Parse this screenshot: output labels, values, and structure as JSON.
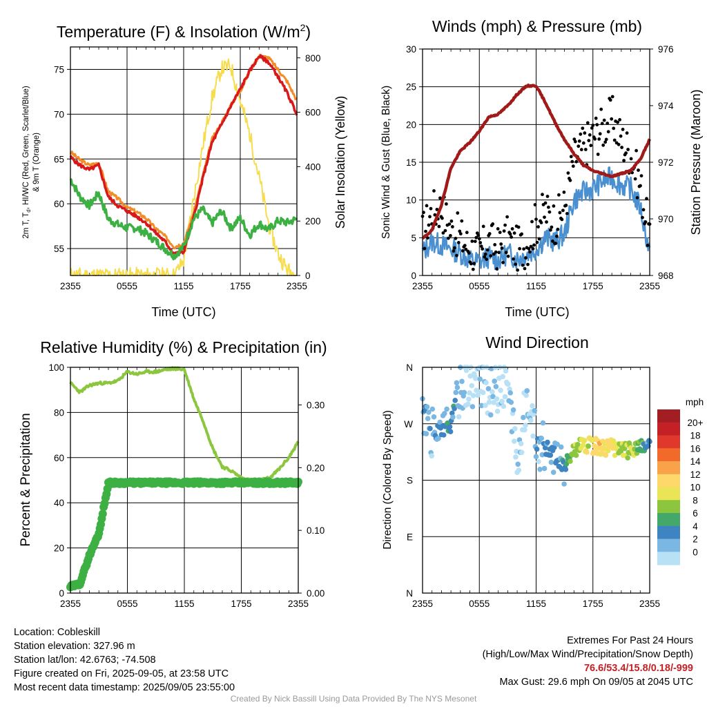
{
  "theme": {
    "temp_color": "#d7191c",
    "hiwc_color": "#3cb043",
    "t9m_color": "#f28c28",
    "solar_color": "#f6dc4e",
    "wind_color": "#4a90d0",
    "gust_color": "#000000",
    "pressure_color": "#a11a1a",
    "rh_color": "#8cc63f",
    "precip_color": "#3cb043"
  },
  "time_ticks": [
    "2355",
    "0555",
    "1155",
    "1755",
    "2355"
  ],
  "chart_data": [
    {
      "id": "temp",
      "type": "line",
      "title_main": "Temperature (F) & Insolation (W/m",
      "title_sup": "2",
      "title_close": ")",
      "xlabel": "Time (UTC)",
      "ylabel_lines": [
        "2m T, T",
        "d",
        ", HI/WC (Red, Green, Scarlet/Blue)",
        "& 9m T (Orange)"
      ],
      "ylabel_right": "Solar Insolation (Yellow)",
      "x_ticks": [
        "2355",
        "0555",
        "1155",
        "1755",
        "2355"
      ],
      "ylim": [
        52,
        77.5
      ],
      "y_ticks": [
        "55",
        "60",
        "65",
        "70",
        "75"
      ],
      "y2lim": [
        0,
        840
      ],
      "y2_ticks": [
        "0",
        "200",
        "400",
        "600",
        "800"
      ],
      "x_hours": [
        0,
        1,
        2,
        3,
        4,
        5,
        6,
        7,
        8,
        9,
        10,
        11,
        12,
        13,
        14,
        15,
        16,
        17,
        18,
        19,
        20,
        21,
        22,
        23,
        24
      ],
      "series": [
        {
          "key": "t9m",
          "values": [
            65.8,
            64.9,
            64.3,
            64.6,
            61.4,
            60.6,
            59.6,
            59.1,
            58.4,
            57.3,
            56.4,
            55.2,
            55.6,
            58.8,
            63.0,
            67.2,
            69.0,
            71.0,
            72.6,
            74.8,
            76.5,
            76.3,
            75.0,
            73.6,
            71.5
          ]
        },
        {
          "key": "temp",
          "values": [
            65.2,
            64.3,
            63.8,
            64.3,
            60.8,
            59.8,
            59.2,
            58.6,
            57.9,
            56.8,
            55.8,
            54.4,
            54.6,
            58.2,
            62.7,
            66.8,
            68.8,
            70.9,
            72.8,
            74.8,
            76.5,
            75.8,
            74.2,
            72.3,
            70.0
          ]
        },
        {
          "key": "hiwc",
          "values": [
            62.8,
            60.8,
            59.8,
            61.2,
            58.3,
            57.7,
            57.3,
            57.3,
            56.7,
            55.9,
            55.0,
            54.2,
            55.2,
            58.2,
            59.4,
            57.8,
            59.2,
            57.3,
            58.4,
            56.5,
            57.8,
            57.1,
            58.1,
            57.9,
            58.3
          ]
        },
        {
          "key": "solar",
          "axis": "right",
          "values": [
            0,
            0,
            0,
            0,
            0,
            0,
            0,
            0,
            0,
            0,
            0,
            0,
            55,
            270,
            470,
            650,
            760,
            770,
            640,
            520,
            360,
            190,
            80,
            20,
            0
          ]
        }
      ]
    },
    {
      "id": "wind",
      "type": "line",
      "title": "Winds (mph) & Pressure (mb)",
      "xlabel": "Time (UTC)",
      "ylabel": "Sonic Wind & Gust (Blue, Black)",
      "ylabel_right": "Station Pressure (Maroon)",
      "x_ticks": [
        "2355",
        "0555",
        "1155",
        "1755",
        "2355"
      ],
      "ylim": [
        0,
        30
      ],
      "y_ticks": [
        "0",
        "5",
        "10",
        "15",
        "20",
        "25",
        "30"
      ],
      "y2lim": [
        968,
        976
      ],
      "y2_ticks": [
        "968",
        "970",
        "972",
        "974",
        "976"
      ],
      "x_hours": [
        0,
        1,
        2,
        3,
        4,
        5,
        6,
        7,
        8,
        9,
        10,
        11,
        12,
        13,
        14,
        15,
        16,
        17,
        18,
        19,
        20,
        21,
        22,
        23,
        24
      ],
      "series": [
        {
          "key": "wind",
          "values": [
            3.0,
            4.5,
            4.0,
            3.5,
            3.0,
            2.0,
            1.8,
            2.5,
            2.0,
            3.0,
            2.2,
            2.8,
            3.5,
            5.0,
            4.5,
            5.5,
            10.0,
            11.0,
            11.5,
            12.5,
            13.0,
            12.0,
            11.5,
            9.0,
            3.0
          ]
        },
        {
          "key": "gust",
          "type": "scatter",
          "values": [
            5.5,
            8.5,
            9.0,
            6.0,
            5.0,
            3.5,
            3.0,
            4.5,
            3.5,
            5.0,
            3.5,
            4.0,
            7.0,
            8.5,
            7.0,
            9.0,
            15.5,
            17.0,
            18.5,
            19.5,
            21.0,
            18.0,
            16.0,
            12.0,
            5.0
          ]
        },
        {
          "key": "pressure",
          "axis": "right",
          "values": [
            969.3,
            969.6,
            970.5,
            971.8,
            972.4,
            972.7,
            973.1,
            973.6,
            973.7,
            974.0,
            974.4,
            974.7,
            974.7,
            974.1,
            973.4,
            972.8,
            972.3,
            971.9,
            971.7,
            971.6,
            971.5,
            971.6,
            971.7,
            972.1,
            972.8
          ]
        }
      ]
    },
    {
      "id": "rh",
      "type": "line",
      "title": "Relative Humidity (%) & Precipitation (in)",
      "ylabel": "Percent & Precipitation",
      "x_ticks": [
        "2355",
        "0555",
        "1155",
        "1755",
        "2355"
      ],
      "ylim": [
        0,
        100
      ],
      "y_ticks": [
        "0",
        "20",
        "40",
        "60",
        "80",
        "100"
      ],
      "y2lim": [
        0,
        0.36
      ],
      "y2_ticks": [
        "0.00",
        "0.10",
        "0.20",
        "0.30"
      ],
      "x_hours": [
        0,
        1,
        2,
        3,
        4,
        5,
        6,
        7,
        8,
        9,
        10,
        11,
        12,
        13,
        14,
        15,
        16,
        17,
        18,
        19,
        20,
        21,
        22,
        23,
        24
      ],
      "series": [
        {
          "key": "rh",
          "values": [
            93,
            89,
            92,
            93,
            93,
            94,
            98,
            97,
            98,
            98,
            99,
            99.5,
            99,
            86,
            76,
            64,
            56,
            54,
            51,
            50,
            50,
            51,
            55,
            60,
            67
          ]
        },
        {
          "key": "precip",
          "type": "scatter",
          "axis": "right",
          "values": [
            0.01,
            0.015,
            0.06,
            0.095,
            0.176,
            0.176,
            0.176,
            0.176,
            0.176,
            0.176,
            0.176,
            0.176,
            0.176,
            0.176,
            0.176,
            0.176,
            0.176,
            0.176,
            0.176,
            0.176,
            0.176,
            0.176,
            0.176,
            0.176,
            0.176
          ]
        }
      ]
    },
    {
      "id": "wdir",
      "type": "scatter",
      "title": "Wind Direction",
      "ylabel": "Direction (Colored By Speed)",
      "x_ticks": [
        "2355",
        "0555",
        "1155",
        "1755",
        "2355"
      ],
      "y_ticks": [
        "N",
        "E",
        "S",
        "W",
        "N"
      ],
      "ylim": [
        0,
        360
      ],
      "colorbar": {
        "unit": "mph",
        "labels": [
          "20+",
          "18",
          "16",
          "14",
          "12",
          "10",
          "8",
          "6",
          "4",
          "2",
          "0"
        ],
        "colors": [
          "#a31e23",
          "#c42126",
          "#e0382a",
          "#f16a2a",
          "#f9a24a",
          "#fed86b",
          "#e9e557",
          "#8cc63f",
          "#44a86a",
          "#3d84c1",
          "#7ab7e3",
          "#b9e1f6"
        ]
      },
      "x_hours": [
        0,
        1,
        2,
        3,
        4,
        5,
        6,
        7,
        8,
        9,
        10,
        11,
        12,
        13,
        14,
        15,
        16,
        17,
        18,
        19,
        20,
        21,
        22,
        23,
        24
      ],
      "series": [
        {
          "key": "direction",
          "values": [
            300,
            255,
            255,
            270,
            330,
            340,
            330,
            320,
            330,
            335,
            200,
            315,
            240,
            230,
            220,
            200,
            230,
            235,
            235,
            232,
            232,
            228,
            228,
            230,
            240
          ]
        },
        {
          "key": "speed",
          "values": [
            4,
            3,
            4,
            6,
            2,
            1,
            1,
            2,
            1,
            2,
            1,
            1,
            3,
            4,
            4,
            5,
            9,
            10,
            12,
            13,
            12,
            10,
            10,
            8,
            4
          ]
        }
      ]
    }
  ],
  "info": {
    "location": "Location: Cobleskill",
    "elevation": "Station elevation: 327.96 m",
    "latlon": "Station lat/lon: 42.6763; -74.508",
    "created": "Figure created on Fri, 2025-09-05, at 23:58 UTC",
    "recent": "Most recent data timestamp: 2025/09/05 23:55:00"
  },
  "extremes": {
    "title": "Extremes For Past 24 Hours",
    "subtitle": "(High/Low/Max Wind/Precipitation/Snow Depth)",
    "values": "76.6/53.4/15.8/0.18/-999",
    "gust": "Max Gust: 29.6 mph On 09/05 at 2045 UTC"
  },
  "credit": "Created By Nick Bassill Using Data Provided By The NYS Mesonet"
}
